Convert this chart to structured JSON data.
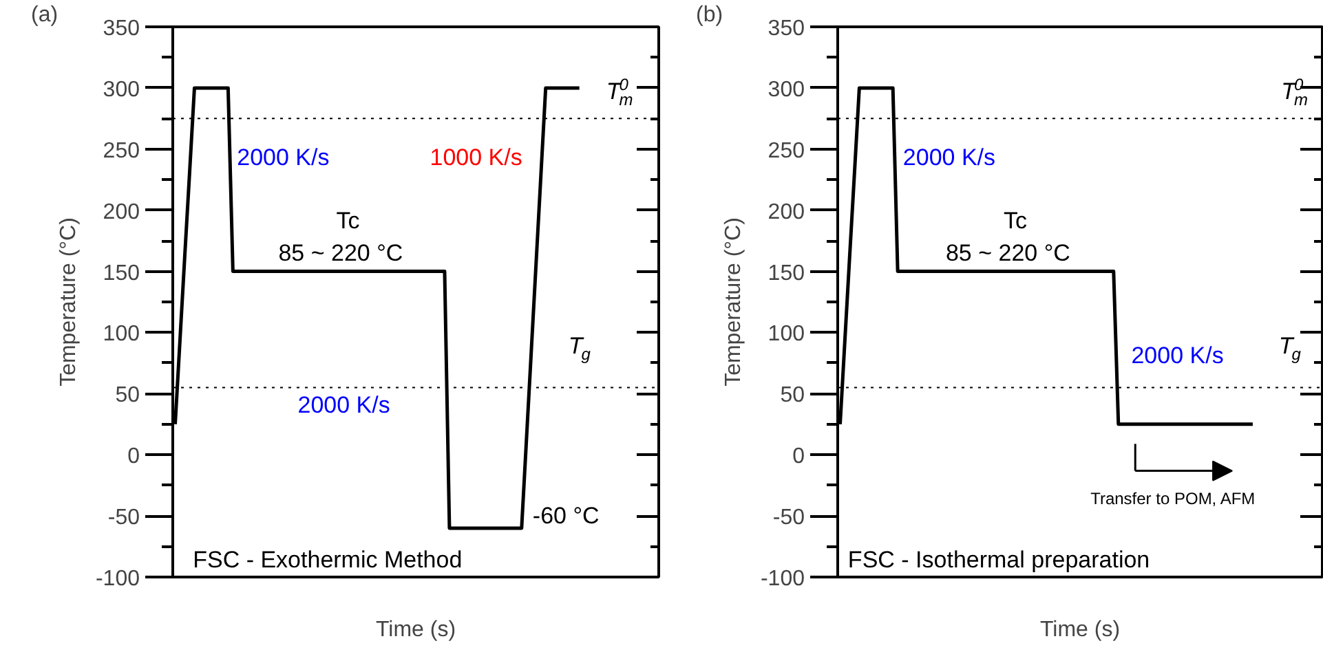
{
  "chart_data": [
    {
      "type": "line",
      "title": "(a)",
      "xlabel": "Time (s)",
      "ylabel": "Temperature (°C)",
      "ylim": [
        -100,
        350
      ],
      "yticks": [
        -100,
        {
          "value": -75,
          "label": null
        },
        -50,
        {
          "value": -25,
          "label": null
        },
        0,
        {
          "value": 25,
          "label": null
        },
        50,
        {
          "value": 75,
          "label": null
        },
        100,
        {
          "value": 125,
          "label": null
        },
        150,
        {
          "value": 175,
          "label": null
        },
        200,
        {
          "value": 225,
          "label": null
        },
        250,
        {
          "value": 275,
          "label": null
        },
        300,
        {
          "value": 325,
          "label": null
        },
        350
      ],
      "tick_labels": "y",
      "grid": false,
      "line_style": "solid",
      "categories": [
        null,
        null,
        null,
        null,
        null,
        null,
        null,
        null,
        null,
        null,
        null,
        null,
        null,
        null,
        null,
        null,
        null,
        null,
        null,
        null,
        null,
        null,
        null,
        null,
        null,
        null,
        null,
        null,
        null,
        null,
        null,
        null,
        null,
        null,
        null,
        null,
        null,
        null,
        null,
        null,
        null,
        null,
        null,
        null,
        null,
        null,
        null,
        null,
        null,
        null,
        null,
        null,
        null,
        null,
        null,
        null,
        null,
        null,
        null,
        null,
        null,
        null,
        null,
        null,
        null,
        null,
        null,
        null,
        null,
        null,
        null,
        null,
        null,
        null,
        null,
        null,
        null,
        null,
        null,
        null,
        null,
        null,
        null,
        null,
        null,
        null,
        null,
        null,
        null,
        null,
        null,
        null,
        null,
        null,
        null,
        null,
        null,
        null,
        null,
        null,
        null
      ],
      "series": [
        {
          "color": "#000000",
          "values": [
            25,
            94,
            163,
            231,
            300,
            300,
            300,
            300,
            300,
            300,
            300,
            300,
            150,
            150,
            150,
            150,
            150,
            150,
            150,
            150,
            150,
            150,
            150,
            150,
            150,
            150,
            150,
            150,
            150,
            150,
            150,
            150,
            150,
            150,
            150,
            150,
            150,
            150,
            150,
            150,
            150,
            150,
            150,
            150,
            150,
            150,
            150,
            150,
            150,
            150,
            150,
            150,
            150,
            150,
            150,
            150,
            150,
            -60,
            -60,
            -60,
            -60,
            -60,
            -60,
            -60,
            -60,
            -60,
            -60,
            -60,
            -60,
            -60,
            -60,
            -60,
            -60,
            12,
            84,
            156,
            228,
            300,
            300,
            300,
            300,
            300,
            300,
            300,
            300,
            null,
            null,
            null,
            null,
            null,
            null,
            null,
            null,
            null,
            null,
            null,
            null,
            null,
            null,
            null,
            null
          ]
        }
      ],
      "ref_lines": [
        {
          "axis": "y",
          "value": 275,
          "color": "#000000",
          "line_style": "dotted"
        },
        {
          "axis": "y",
          "value": 55,
          "color": "#000000",
          "line_style": "dotted"
        }
      ],
      "annotations": [
        "2000 K/s",
        "1000 K/s",
        "Tc",
        "85 ~ 220 °C",
        "2000 K/s",
        "-60 °C",
        "T$_{m}$$^{0}$",
        "T$_{g}$",
        "FSC - Exothermic Method"
      ]
    },
    {
      "type": "line",
      "title": "(b)",
      "xlabel": "Time (s)",
      "ylabel": "Temperature (°C)",
      "ylim": [
        -100,
        350
      ],
      "yticks": [
        -100,
        {
          "value": -75,
          "label": null
        },
        -50,
        {
          "value": -25,
          "label": null
        },
        0,
        {
          "value": 25,
          "label": null
        },
        50,
        {
          "value": 75,
          "label": null
        },
        100,
        {
          "value": 125,
          "label": null
        },
        150,
        {
          "value": 175,
          "label": null
        },
        200,
        {
          "value": 225,
          "label": null
        },
        250,
        {
          "value": 275,
          "label": null
        },
        300,
        {
          "value": 325,
          "label": null
        },
        350
      ],
      "tick_labels": "y",
      "grid": false,
      "line_style": "solid",
      "categories": [
        null,
        null,
        null,
        null,
        null,
        null,
        null,
        null,
        null,
        null,
        null,
        null,
        null,
        null,
        null,
        null,
        null,
        null,
        null,
        null,
        null,
        null,
        null,
        null,
        null,
        null,
        null,
        null,
        null,
        null,
        null,
        null,
        null,
        null,
        null,
        null,
        null,
        null,
        null,
        null,
        null,
        null,
        null,
        null,
        null,
        null,
        null,
        null,
        null,
        null,
        null,
        null,
        null,
        null,
        null,
        null,
        null,
        null,
        null,
        null,
        null,
        null,
        null,
        null,
        null,
        null,
        null,
        null,
        null,
        null,
        null,
        null,
        null,
        null,
        null,
        null,
        null,
        null,
        null,
        null,
        null,
        null,
        null,
        null,
        null,
        null,
        null,
        null,
        null,
        null,
        null,
        null,
        null,
        null,
        null,
        null,
        null,
        null,
        null,
        null,
        null
      ],
      "series": [
        {
          "color": "#000000",
          "values": [
            25,
            94,
            163,
            231,
            300,
            300,
            300,
            300,
            300,
            300,
            300,
            300,
            150,
            150,
            150,
            150,
            150,
            150,
            150,
            150,
            150,
            150,
            150,
            150,
            150,
            150,
            150,
            150,
            150,
            150,
            150,
            150,
            150,
            150,
            150,
            150,
            150,
            150,
            150,
            150,
            150,
            150,
            150,
            150,
            150,
            150,
            150,
            150,
            150,
            150,
            150,
            150,
            150,
            150,
            150,
            150,
            150,
            150,
            25,
            25,
            25,
            25,
            25,
            25,
            25,
            25,
            25,
            25,
            25,
            25,
            25,
            25,
            25,
            25,
            25,
            25,
            25,
            25,
            25,
            25,
            25,
            25,
            25,
            25,
            25,
            25,
            25,
            null,
            null,
            null,
            null,
            null,
            null,
            null,
            null,
            null,
            null,
            null,
            null,
            null,
            null
          ]
        }
      ],
      "ref_lines": [
        {
          "axis": "y",
          "value": 275,
          "color": "#000000",
          "line_style": "dotted"
        },
        {
          "axis": "y",
          "value": 55,
          "color": "#000000",
          "line_style": "dotted"
        }
      ],
      "annotations": [
        "2000 K/s",
        "Tc",
        "85 ~ 220 °C",
        "2000 K/s",
        "T$_{m}$$^{0}$",
        "T$_{g}$",
        "Transfer to POM, AFM",
        "FSC - Isothermal preparation"
      ]
    }
  ]
}
